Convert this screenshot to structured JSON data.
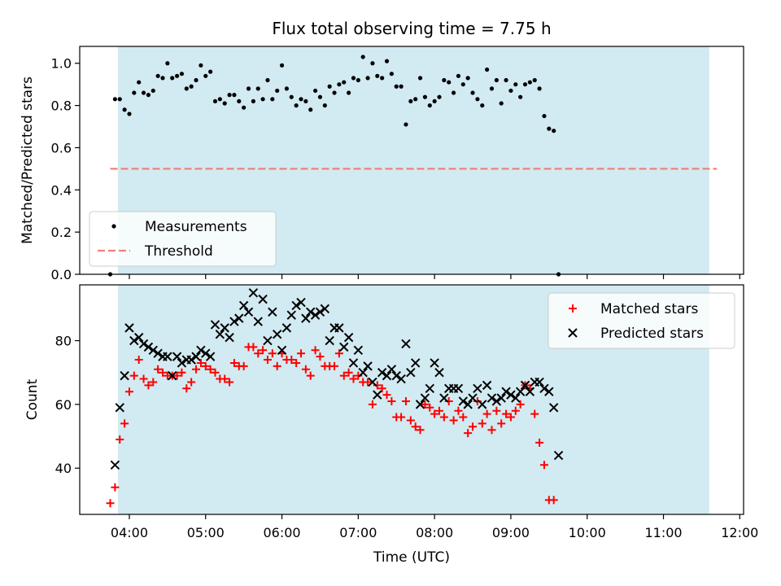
{
  "chart_data": {
    "title": "Flux total observing time = 7.75 h",
    "xlabel": "Time (UTC)",
    "x_tick_labels": [
      "04:00",
      "05:00",
      "06:00",
      "07:00",
      "08:00",
      "09:00",
      "10:00",
      "11:00",
      "12:00"
    ],
    "x_range_hours": [
      3.35,
      12.05
    ],
    "observing_window_hours": [
      3.85,
      11.6
    ],
    "colors": {
      "observing_band": "#add8e6",
      "matched": "#ff0000",
      "predicted": "#000000",
      "threshold": "#f08080",
      "measurement": "#000000"
    },
    "panels": [
      {
        "type": "scatter",
        "ylabel": "Matched/Predicted stars",
        "ylim": [
          0,
          1.08
        ],
        "y_ticks": [
          "0.0",
          "0.2",
          "0.4",
          "0.6",
          "0.8",
          "1.0"
        ],
        "legend_position": "lower-left",
        "legend": [
          "Measurements",
          "Threshold"
        ],
        "threshold": {
          "y": 0.5,
          "x_range": [
            3.75,
            11.7
          ]
        },
        "measurement_x_start": 3.75,
        "measurement_x_step": 0.0625,
        "measurements": [
          0,
          0.83,
          0.83,
          0.78,
          0.76,
          0.86,
          0.91,
          0.86,
          0.85,
          0.87,
          0.94,
          0.93,
          1.0,
          0.93,
          0.94,
          0.95,
          0.88,
          0.89,
          0.92,
          0.99,
          0.94,
          0.96,
          0.82,
          0.83,
          0.81,
          0.85,
          0.85,
          0.82,
          0.79,
          0.88,
          0.82,
          0.88,
          0.83,
          0.92,
          0.83,
          0.87,
          0.99,
          0.88,
          0.84,
          0.8,
          0.83,
          0.82,
          0.78,
          0.87,
          0.84,
          0.8,
          0.89,
          0.86,
          0.9,
          0.91,
          0.86,
          0.93,
          0.92,
          1.03,
          0.93,
          1.0,
          0.94,
          0.93,
          1.01,
          0.95,
          0.89,
          0.89,
          0.71,
          0.82,
          0.83,
          0.93,
          0.84,
          0.8,
          0.82,
          0.84,
          0.92,
          0.91,
          0.86,
          0.94,
          0.9,
          0.93,
          0.86,
          0.83,
          0.8,
          0.97,
          0.88,
          0.92,
          0.81,
          0.92,
          0.87,
          0.9,
          0.84,
          0.9,
          0.91,
          0.92,
          0.88,
          0.75,
          0.69,
          0.68,
          0
        ]
      },
      {
        "type": "scatter",
        "ylabel": "Count",
        "ylim": [
          25.5,
          97.5
        ],
        "y_ticks": [
          "40",
          "60",
          "80"
        ],
        "legend_position": "top-right",
        "series": [
          {
            "name": "Matched stars",
            "x_start": 3.75,
            "x_step": 0.0625,
            "values": [
              29,
              34,
              49,
              54,
              64,
              69,
              74,
              68,
              66,
              67,
              71,
              70,
              69,
              69,
              69,
              70,
              65,
              67,
              71,
              73,
              72,
              71,
              70,
              68,
              68,
              67,
              73,
              72,
              72,
              78,
              78,
              76,
              77,
              74,
              76,
              72,
              76,
              74,
              74,
              73,
              76,
              71,
              69,
              77,
              75,
              72,
              72,
              72,
              76,
              69,
              70,
              68,
              69,
              67,
              67,
              60,
              66,
              65,
              63,
              61,
              56,
              56,
              61,
              55,
              53,
              52,
              60,
              59,
              57,
              58,
              56,
              61,
              55,
              58,
              56,
              51,
              53,
              61,
              54,
              57,
              52,
              58,
              54,
              57,
              56,
              58,
              60,
              66,
              65,
              57,
              48,
              41,
              30,
              30
            ]
          },
          {
            "name": "Predicted stars",
            "x_start": 3.8125,
            "x_step": 0.0625,
            "values": [
              41,
              59,
              69,
              84,
              80,
              81,
              79,
              78,
              77,
              76,
              75,
              75,
              69,
              75,
              73,
              74,
              74,
              75,
              77,
              76,
              75,
              85,
              82,
              84,
              81,
              86,
              87,
              91,
              89,
              95,
              86,
              93,
              80,
              89,
              82,
              77,
              84,
              88,
              91,
              92,
              87,
              89,
              88,
              89,
              90,
              80,
              84,
              84,
              78,
              81,
              73,
              77,
              70,
              72,
              67,
              63,
              70,
              69,
              71,
              69,
              68,
              79,
              70,
              73,
              60,
              62,
              65,
              73,
              70,
              62,
              65,
              65,
              65,
              61,
              60,
              62,
              65,
              60,
              66,
              62,
              61,
              62,
              64,
              63,
              62,
              64,
              66,
              64,
              67,
              67,
              65,
              64,
              59,
              44
            ]
          }
        ]
      }
    ]
  }
}
